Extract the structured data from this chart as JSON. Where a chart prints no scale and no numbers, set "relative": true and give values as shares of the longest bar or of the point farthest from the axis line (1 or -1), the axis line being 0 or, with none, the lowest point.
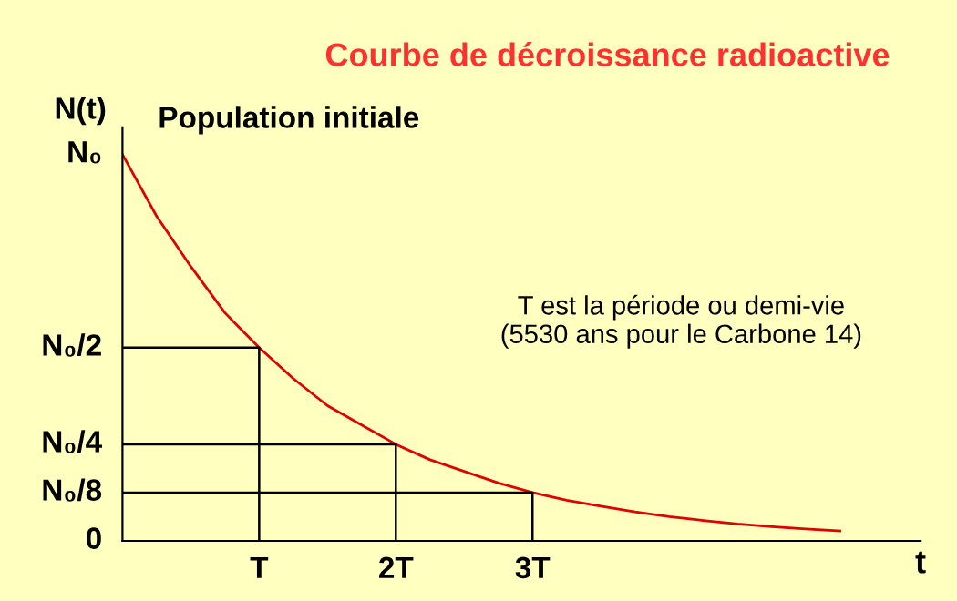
{
  "chart_data": {
    "type": "line",
    "title": "Courbe de décroissance radioactive",
    "xlabel": "t",
    "ylabel": "N(t)",
    "xlim": [
      0,
      5.84
    ],
    "relative": true,
    "xticks": [
      {
        "value": 1,
        "label": "T"
      },
      {
        "value": 2,
        "label": "2T"
      },
      {
        "value": 3,
        "label": "3T"
      }
    ],
    "grid": false,
    "legend": false,
    "marker": "none",
    "line_style": "solid",
    "series": [
      {
        "color": "#e00000",
        "x": [
          0,
          0.25,
          0.5,
          0.75,
          1,
          1.25,
          1.5,
          1.75,
          2,
          2.25,
          2.5,
          2.75,
          3,
          3.25,
          3.5,
          3.75,
          4,
          4.25,
          4.5,
          4.75,
          5,
          5.25
        ],
        "values": [
          1,
          0.84,
          0.71,
          0.59,
          0.5,
          0.42,
          0.35,
          0.3,
          0.25,
          0.21,
          0.18,
          0.15,
          0.125,
          0.105,
          0.09,
          0.075,
          0.063,
          0.053,
          0.044,
          0.037,
          0.031,
          0.026
        ]
      },
      {
        "color": "#000000",
        "x": [
          0,
          1,
          1
        ],
        "values": [
          0.5,
          0.5,
          0
        ]
      },
      {
        "color": "#000000",
        "x": [
          0,
          2,
          2
        ],
        "values": [
          0.25,
          0.25,
          0
        ]
      },
      {
        "color": "#000000",
        "x": [
          0,
          3,
          3
        ],
        "values": [
          0.125,
          0.125,
          0
        ]
      }
    ],
    "annotations": [
      "0",
      "N₀",
      "N₀/2",
      "N₀/4",
      "N₀/8",
      {
        "text": "Population initiale",
        "x": 0,
        "y": 1
      },
      "T est la période ou demi-vie\n(5530 ans pour le Carbone 14)"
    ]
  }
}
